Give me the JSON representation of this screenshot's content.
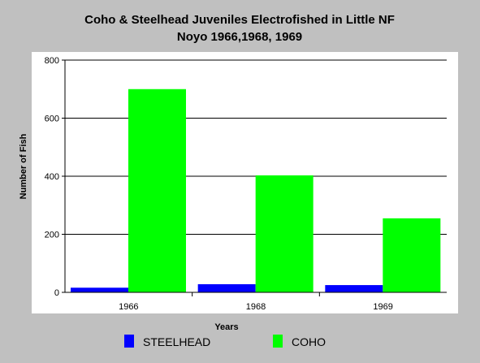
{
  "chart_data": {
    "type": "bar",
    "title": "Coho & Steelhead Juveniles Electrofished in Little NF",
    "subtitle": "Noyo 1966,1968, 1969",
    "xlabel": "Years",
    "ylabel": "Number of Fish",
    "categories": [
      "1966",
      "1968",
      "1969"
    ],
    "series": [
      {
        "name": "STEELHEAD",
        "color": "#0000ff",
        "values": [
          16,
          28,
          25
        ]
      },
      {
        "name": "COHO",
        "color": "#00ff00",
        "values": [
          700,
          403,
          255
        ]
      }
    ],
    "ylim": [
      0,
      800
    ],
    "yticks": [
      0,
      200,
      400,
      600,
      800
    ],
    "grid": true,
    "legend_position": "bottom"
  },
  "colors": {
    "background": "#c0c0c0",
    "plot_background": "#ffffff",
    "gridline": "#000000"
  }
}
